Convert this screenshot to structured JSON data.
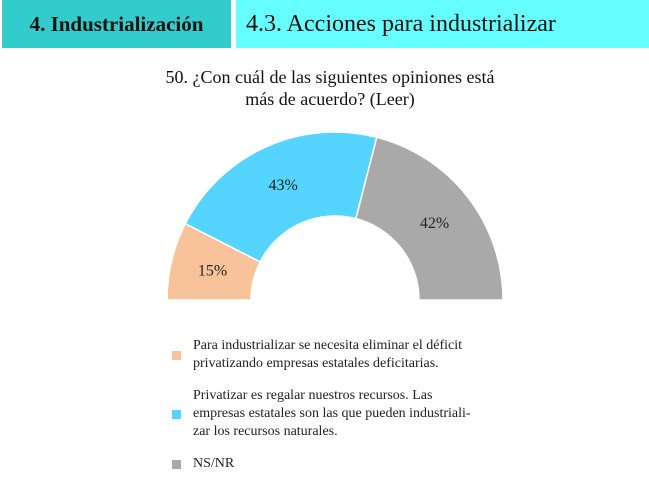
{
  "header": {
    "section": "4. Industrialización",
    "subsection": "4.3. Acciones para industrializar"
  },
  "question": {
    "line1": "50. ¿Con cuál de las siguientes opiniones está",
    "line2": "más de acuerdo? (Leer)"
  },
  "chart_data": {
    "type": "pie",
    "subtype": "half-donut",
    "title": "50. ¿Con cuál de las siguientes opiniones está más de acuerdo? (Leer)",
    "categories": [
      "Para industrializar se necesita eliminar el déficit privatizando empresas estatales deficitarias.",
      "Privatizar es regalar nuestros recursos. Las empresas estatales son las que pueden industrializar los recursos naturales.",
      "NS/NR"
    ],
    "values": [
      15,
      43,
      42
    ],
    "labels": [
      "15%",
      "43%",
      "42%"
    ],
    "colors": [
      "#F8C39A",
      "#55D4FF",
      "#A9A9A9"
    ],
    "legend_position": "bottom"
  },
  "legend": {
    "items": [
      {
        "lines": [
          "Para industrializar se necesita eliminar el déficit",
          "privatizando empresas estatales deficitarias."
        ],
        "color": "#F8C39A"
      },
      {
        "lines": [
          "Privatizar es regalar nuestros recursos. Las",
          "empresas estatales son las que pueden industriali-",
          "zar los recursos naturales."
        ],
        "color": "#55D4FF"
      },
      {
        "lines": [
          "NS/NR"
        ],
        "color": "#A9A9A9"
      }
    ]
  }
}
